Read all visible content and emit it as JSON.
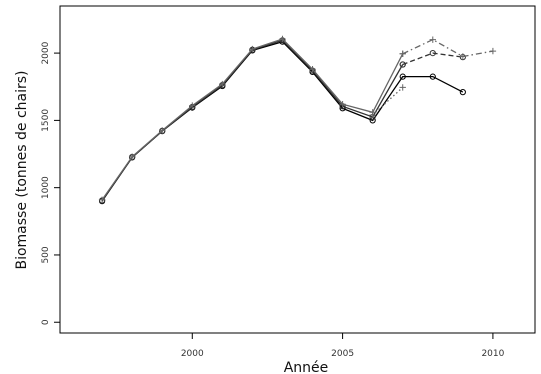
{
  "chart_data": {
    "type": "line",
    "title": "",
    "xlabel": "Année",
    "ylabel": "Biomasse (tonnes de chairs)",
    "xlim": [
      1995.6,
      2011.4
    ],
    "ylim": [
      -80,
      2350
    ],
    "xticks": [
      2000,
      2005,
      2010
    ],
    "yticks": [
      0,
      500,
      1000,
      1500,
      2000
    ],
    "grid": false,
    "legend": "none",
    "series": [
      {
        "marker": "circle",
        "linestyle": "solid",
        "color": "#000000",
        "x": [
          1997,
          1998,
          1999,
          2000,
          2001,
          2002,
          2003,
          2004,
          2005,
          2006,
          2007,
          2008,
          2009
        ],
        "y": [
          900,
          1225,
          1420,
          1595,
          1755,
          2020,
          2085,
          1860,
          1590,
          1500,
          1825,
          1825,
          1710
        ]
      },
      {
        "marker": "circle",
        "linestyle": "solid",
        "color": "#333333",
        "x": [
          1997,
          1998,
          1999,
          2000,
          2001,
          2002,
          2003,
          2004,
          2005,
          2006,
          2007
        ],
        "y": [
          905,
          1228,
          1422,
          1600,
          1762,
          2025,
          2095,
          1870,
          1605,
          1525,
          1915
        ]
      },
      {
        "marker": "circle",
        "linestyle": "dashed",
        "color": "#333333",
        "x": [
          2007,
          2008,
          2009
        ],
        "y": [
          1915,
          2000,
          1970
        ]
      },
      {
        "marker": "plus",
        "linestyle": "solid",
        "color": "#666666",
        "x": [
          1997,
          1998,
          1999,
          2000,
          2001,
          2002,
          2003,
          2004,
          2005,
          2006,
          2007
        ],
        "y": [
          910,
          1230,
          1425,
          1610,
          1770,
          2030,
          2105,
          1880,
          1620,
          1560,
          1995
        ]
      },
      {
        "marker": "plus",
        "linestyle": "dashdot",
        "color": "#666666",
        "x": [
          2007,
          2008,
          2009,
          2010
        ],
        "y": [
          1995,
          2100,
          1975,
          2015
        ]
      },
      {
        "marker": "plus",
        "linestyle": "dotted",
        "color": "#666666",
        "x": [
          2006,
          2007
        ],
        "y": [
          1540,
          1745
        ]
      }
    ]
  }
}
